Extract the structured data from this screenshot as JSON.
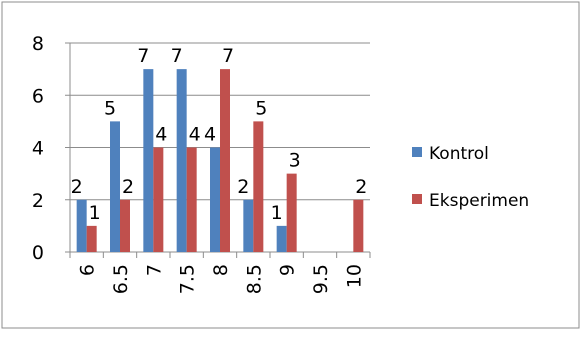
{
  "chart_data": {
    "type": "bar",
    "categories": [
      "6",
      "6.5",
      "7",
      "7.5",
      "8",
      "8.5",
      "9",
      "9.5",
      "10"
    ],
    "series": [
      {
        "name": "Kontrol",
        "color": "#4f81bd",
        "values": [
          2,
          5,
          7,
          7,
          4,
          2,
          1,
          null,
          null
        ]
      },
      {
        "name": "Eksperimen",
        "color": "#c0504d",
        "values": [
          1,
          2,
          4,
          4,
          7,
          5,
          3,
          null,
          2
        ]
      }
    ],
    "ylim": [
      0,
      8
    ],
    "yticks": [
      0,
      2,
      4,
      6,
      8
    ],
    "grid": true,
    "legend_position": "right",
    "data_labels": true
  }
}
